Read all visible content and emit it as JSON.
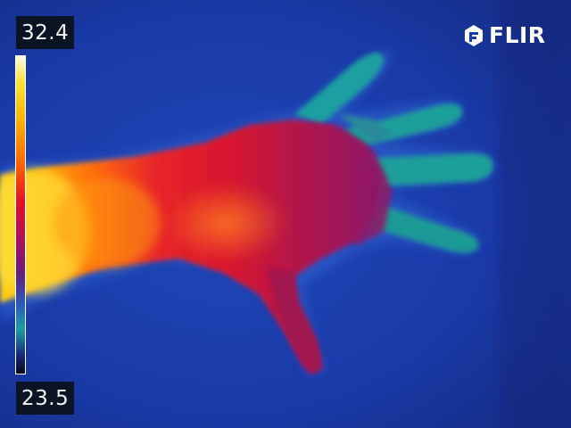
{
  "thermal_image": {
    "subject": "hand-and-forearm",
    "palette": "iron"
  },
  "temperature_scale": {
    "max_label": "32.4",
    "min_label": "23.5"
  },
  "brand": {
    "logo_text": "FLIR"
  },
  "colors": {
    "background_cold": "#1a3aa8",
    "skin_hot": "#e0102a",
    "skin_hottest": "#ffd21a",
    "fingers_cool": "#1c9fa0",
    "label_background": "#0b1424",
    "label_text": "#f2f2f2"
  }
}
